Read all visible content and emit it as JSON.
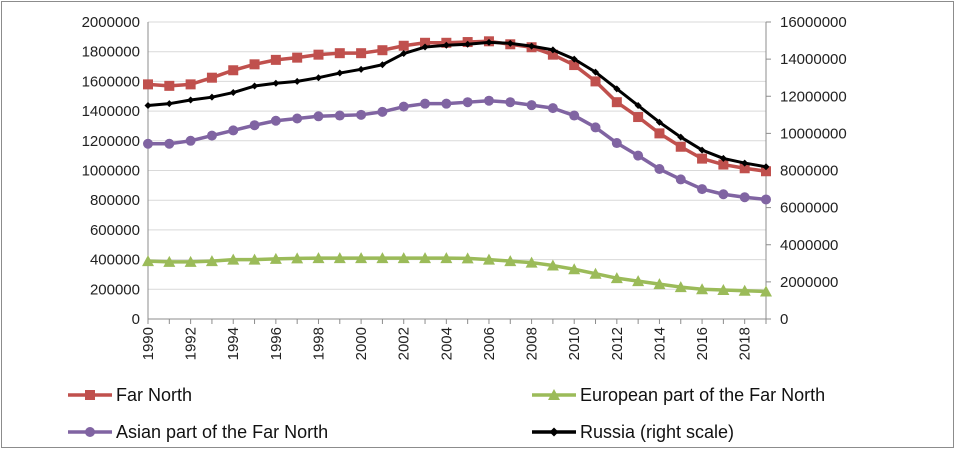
{
  "chart_data": {
    "type": "line",
    "title": "",
    "xlabel": "",
    "ylabel": "",
    "x": [
      1990,
      1991,
      1992,
      1993,
      1994,
      1995,
      1996,
      1997,
      1998,
      1999,
      2000,
      2001,
      2002,
      2003,
      2004,
      2005,
      2006,
      2007,
      2008,
      2009,
      2010,
      2011,
      2012,
      2013,
      2014,
      2015,
      2016,
      2017,
      2018,
      2019
    ],
    "x_ticks": [
      "1990",
      "1992",
      "1994",
      "1996",
      "1998",
      "2000",
      "2002",
      "2004",
      "2006",
      "2008",
      "2010",
      "2012",
      "2014",
      "2016",
      "2018"
    ],
    "y_left_ticks": [
      "0",
      "200000",
      "400000",
      "600000",
      "800000",
      "1000000",
      "1200000",
      "1400000",
      "1600000",
      "1800000",
      "2000000"
    ],
    "y_right_ticks": [
      "0",
      "2000000",
      "4000000",
      "6000000",
      "8000000",
      "10000000",
      "12000000",
      "14000000",
      "16000000"
    ],
    "ylim_left": [
      0,
      2000000
    ],
    "ylim_right": [
      0,
      16000000
    ],
    "grid": "horizontal",
    "legend_position": "bottom",
    "series": [
      {
        "name": "Far North",
        "axis": "left",
        "color": "#c0504d",
        "marker": "square",
        "values": [
          1580000,
          1570000,
          1580000,
          1625000,
          1675000,
          1715000,
          1745000,
          1760000,
          1780000,
          1790000,
          1790000,
          1810000,
          1840000,
          1860000,
          1860000,
          1865000,
          1870000,
          1850000,
          1830000,
          1780000,
          1710000,
          1600000,
          1460000,
          1360000,
          1250000,
          1160000,
          1080000,
          1040000,
          1015000,
          995000
        ]
      },
      {
        "name": "European part of the Far North",
        "axis": "left",
        "color": "#9bbb59",
        "marker": "triangle",
        "values": [
          390000,
          385000,
          385000,
          390000,
          400000,
          400000,
          405000,
          408000,
          410000,
          410000,
          410000,
          410000,
          410000,
          410000,
          410000,
          408000,
          400000,
          390000,
          380000,
          360000,
          335000,
          305000,
          275000,
          255000,
          235000,
          215000,
          200000,
          195000,
          190000,
          185000
        ]
      },
      {
        "name": "Asian part of the Far North",
        "axis": "left",
        "color": "#8064a2",
        "marker": "circle",
        "values": [
          1180000,
          1180000,
          1200000,
          1235000,
          1270000,
          1305000,
          1335000,
          1350000,
          1365000,
          1370000,
          1375000,
          1395000,
          1430000,
          1450000,
          1450000,
          1460000,
          1470000,
          1460000,
          1440000,
          1420000,
          1370000,
          1290000,
          1185000,
          1100000,
          1010000,
          940000,
          875000,
          840000,
          820000,
          805000
        ]
      },
      {
        "name": "Russia (right scale)",
        "axis": "right",
        "color": "#000000",
        "marker": "diamond",
        "values": [
          11500000,
          11600000,
          11800000,
          11950000,
          12200000,
          12550000,
          12700000,
          12800000,
          13000000,
          13250000,
          13450000,
          13700000,
          14300000,
          14650000,
          14750000,
          14800000,
          14900000,
          14850000,
          14700000,
          14500000,
          14000000,
          13300000,
          12400000,
          11500000,
          10600000,
          9800000,
          9100000,
          8650000,
          8400000,
          8200000
        ]
      }
    ]
  }
}
